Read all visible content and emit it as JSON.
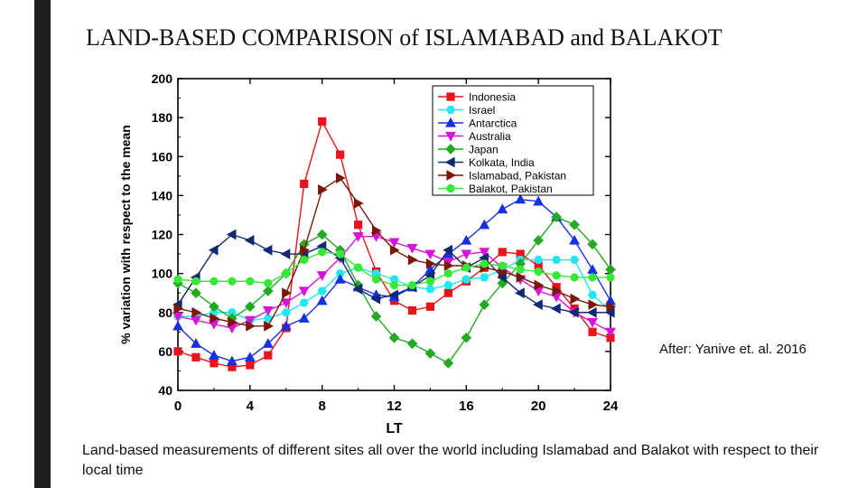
{
  "slide": {
    "title": "LAND-BASED COMPARISON of ISLAMABAD and BALAKOT",
    "credit": "After: Yanive et. al. 2016",
    "caption": "Land-based measurements of different sites all over the world including Islamabad and Balakot with respect to their local time"
  },
  "chart_data": {
    "type": "line",
    "title": "",
    "xlabel": "LT",
    "ylabel": "% variation with respect to the mean",
    "xlim": [
      0,
      24
    ],
    "ylim": [
      40,
      200
    ],
    "xticks": [
      0,
      4,
      8,
      12,
      16,
      20,
      24
    ],
    "yticks": [
      40,
      60,
      80,
      100,
      120,
      140,
      160,
      180,
      200
    ],
    "legend_position": "top-right",
    "x": [
      0,
      1,
      2,
      3,
      4,
      5,
      6,
      7,
      8,
      9,
      10,
      11,
      12,
      13,
      14,
      15,
      16,
      17,
      18,
      19,
      20,
      21,
      22,
      23,
      24
    ],
    "series": [
      {
        "name": "Indonesia",
        "color": "#e8141c",
        "marker": "square",
        "values": [
          60,
          57,
          54,
          52,
          53,
          58,
          72,
          146,
          178,
          161,
          125,
          101,
          86,
          81,
          83,
          90,
          96,
          103,
          111,
          110,
          104,
          93,
          82,
          70,
          67
        ]
      },
      {
        "name": "Israel",
        "color": "#22e6f0",
        "marker": "hexagon",
        "values": [
          78,
          78,
          80,
          80,
          76,
          77,
          80,
          85,
          91,
          100,
          103,
          100,
          97,
          93,
          92,
          94,
          97,
          98,
          102,
          107,
          107,
          107,
          107,
          89,
          81
        ]
      },
      {
        "name": "Antarctica",
        "color": "#1530e0",
        "marker": "triangle-up",
        "values": [
          73,
          64,
          58,
          55,
          57,
          64,
          73,
          77,
          86,
          97,
          93,
          89,
          88,
          93,
          102,
          110,
          117,
          125,
          133,
          138,
          137,
          129,
          117,
          102,
          86
        ]
      },
      {
        "name": "Australia",
        "color": "#d615d8",
        "marker": "triangle-down",
        "values": [
          78,
          76,
          74,
          72,
          76,
          81,
          85,
          91,
          99,
          108,
          119,
          119,
          116,
          113,
          110,
          106,
          110,
          111,
          103,
          97,
          91,
          88,
          80,
          75,
          70
        ]
      },
      {
        "name": "Japan",
        "color": "#22aa22",
        "marker": "diamond",
        "values": [
          95,
          90,
          83,
          77,
          83,
          91,
          100,
          115,
          120,
          112,
          94,
          78,
          67,
          64,
          59,
          54,
          67,
          84,
          95,
          105,
          117,
          129,
          125,
          115,
          102
        ]
      },
      {
        "name": "Kolkata, India",
        "color": "#102a70",
        "marker": "triangle-left",
        "values": [
          84,
          98,
          112,
          120,
          117,
          112,
          110,
          110,
          114,
          108,
          92,
          87,
          89,
          93,
          99,
          112,
          103,
          108,
          98,
          90,
          84,
          82,
          80,
          80,
          80
        ]
      },
      {
        "name": "Islamabad, Pakistan",
        "color": "#7a1808",
        "marker": "triangle-right",
        "values": [
          82,
          80,
          77,
          75,
          73,
          73,
          90,
          112,
          143,
          149,
          136,
          122,
          112,
          107,
          105,
          104,
          104,
          103,
          101,
          98,
          94,
          91,
          87,
          84,
          83
        ]
      },
      {
        "name": "Balakot, Pakistan",
        "color": "#38e838",
        "marker": "circle",
        "values": [
          97,
          96,
          96,
          96,
          96,
          95,
          100,
          107,
          111,
          110,
          103,
          97,
          94,
          94,
          96,
          100,
          103,
          105,
          104,
          102,
          101,
          99,
          98,
          98,
          98
        ]
      }
    ]
  }
}
